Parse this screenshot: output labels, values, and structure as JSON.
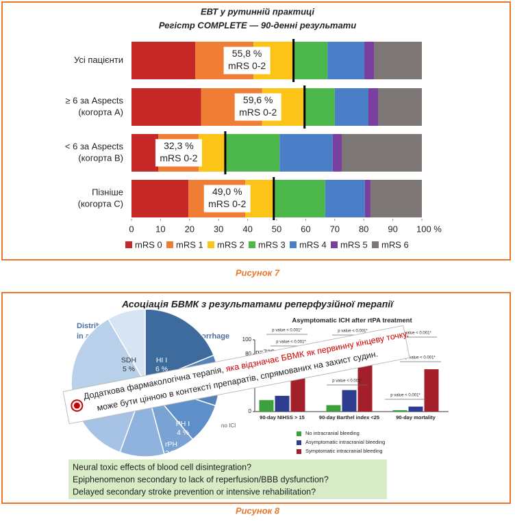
{
  "figure7": {
    "caption": "Рисунок 7",
    "chart_data": {
      "type": "bar",
      "orientation": "horizontal",
      "stacked": true,
      "title": [
        "ЕВТ у рутинній практиці",
        "Регістр COMPLETE — 90-денні результати"
      ],
      "categories": [
        [
          "Усі пацієнти"
        ],
        [
          "≥ 6 за Aspects",
          "(когорта А)"
        ],
        [
          "< 6 за Aspects",
          "(когорта В)"
        ],
        [
          "Пізніше",
          "(когорта С)"
        ]
      ],
      "series": [
        {
          "name": "mRS 0",
          "color": "#c62828",
          "values": [
            22,
            24,
            9.2,
            19.6
          ]
        },
        {
          "name": "mRS 1",
          "color": "#ef7d33",
          "values": [
            20,
            21,
            13.9,
            19.6
          ]
        },
        {
          "name": "mRS 2",
          "color": "#fcc419",
          "values": [
            13.8,
            14.6,
            9.2,
            9.8
          ]
        },
        {
          "name": "mRS 3",
          "color": "#4cb84c",
          "values": [
            11.7,
            10.4,
            18.7,
            17.7
          ]
        },
        {
          "name": "mRS 4",
          "color": "#4a7fc8",
          "values": [
            12.7,
            11.6,
            18.3,
            13.7
          ]
        },
        {
          "name": "mRS 5",
          "color": "#7b3fa0",
          "values": [
            3.3,
            3.4,
            3.1,
            1.9
          ]
        },
        {
          "name": "mRS 6",
          "color": "#7c7775",
          "values": [
            16.5,
            15,
            27.6,
            17.7
          ]
        }
      ],
      "annotations": [
        [
          "55,8 %",
          "mRS 0-2"
        ],
        [
          "59,6 %",
          "mRS 0-2"
        ],
        [
          "32,3 %",
          "mRS 0-2"
        ],
        [
          "49,0 %",
          "mRS 0-2"
        ]
      ],
      "xlim": [
        0,
        100
      ],
      "xticks": [
        0,
        10,
        20,
        30,
        40,
        50,
        60,
        70,
        80,
        90,
        {
          "value": 100,
          "label": "100 %"
        }
      ],
      "legend": "bottom"
    }
  },
  "figure8": {
    "caption": "Рисунок 8",
    "title": "Асоціація БВМК з результатами реперфузійної терапії",
    "pie": {
      "title": [
        "Distribution of bleeding events",
        "in asymptomatic intracerebral hemorrhage"
      ],
      "labels": [
        [
          "HI I",
          "6 %"
        ],
        [
          "SDH",
          "5 %"
        ],
        [
          "PH I",
          "4 %"
        ],
        [
          "rPH",
          "2 %"
        ]
      ]
    },
    "chart_data": {
      "type": "bar",
      "title": "Asymptomatic ICH after rtPA treatment",
      "categories": [
        "90-day NIHSS > 15",
        "90-day Barthel index <25",
        "90-day mortality"
      ],
      "series": [
        {
          "name": "No intracranial bleeding",
          "color": "#3ca03c",
          "values": [
            16,
            9,
            2
          ]
        },
        {
          "name": "Asymptomatic intracranial bleeding",
          "color": "#2e3d8f",
          "values": [
            22,
            30,
            7
          ]
        },
        {
          "name": "Symptomatic intracranial bleeding",
          "color": "#a3202a",
          "values": [
            85,
            75,
            59
          ]
        }
      ],
      "ylim": [
        0,
        100
      ],
      "yticks": [
        0,
        80,
        100
      ],
      "annotations": [
        "n=725",
        "no ICI"
      ],
      "significance_labels": [
        "p value < 0.001*",
        "p value < 0.001*",
        "p value < 0.001*",
        "p value < 0.001*",
        "p value < 0.001*",
        "p value < 0.001*",
        "p value < 0.001*",
        "p value < 0.001*"
      ]
    },
    "banner": {
      "line1": [
        "Додаткова фармакологічна терапія, ",
        "яка відзначає БВМК як первинну кінцеву точку,"
      ],
      "line2": "може бути цінною в контексті препаратів, спрямованих на захист судин."
    },
    "questions": [
      "Neural toxic effects of blood cell disintegration?",
      "Epiphenomenon secondary to lack of reperfusion/BBB dysfunction?",
      "Delayed secondary stroke prevention or intensive rehabilitation?"
    ]
  }
}
